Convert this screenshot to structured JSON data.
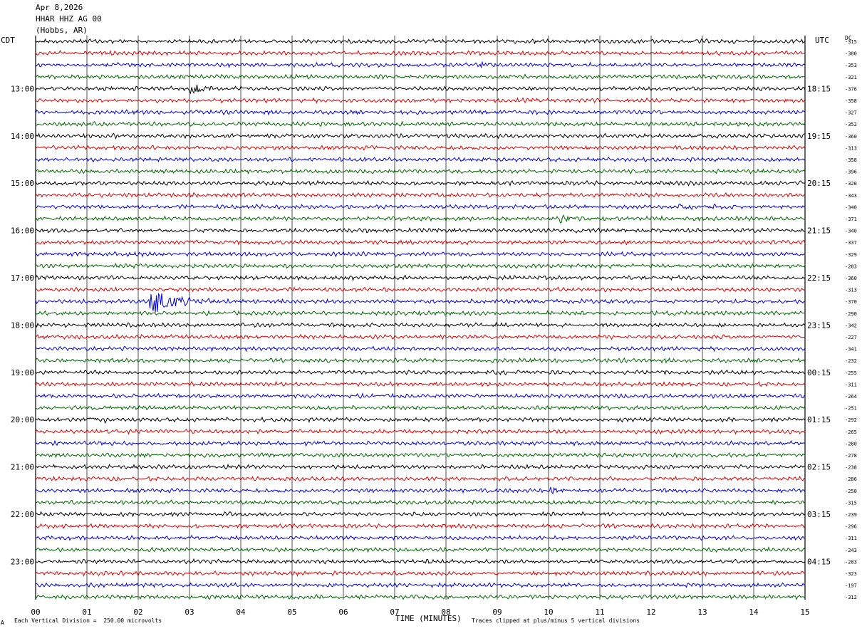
{
  "header": {
    "date": "Apr 8,2026",
    "station": "HHAR HHZ AG 00",
    "location": "(Hobbs, AR)"
  },
  "left_timezone": "CDT",
  "right_timezone": "UTC",
  "dc_label": "DC",
  "footer": {
    "scale_note": "Each Vertical Division =  250.00 microvolts",
    "xlabel": "TIME (MINUTES)",
    "clip_note": "Traces clipped at plus/minus 5 vertical divisions",
    "corner_mark": "A"
  },
  "colors": {
    "trace_cycle": [
      "#000000",
      "#dd0000",
      "#0000dd",
      "#006600"
    ],
    "grid": "#000000"
  },
  "chart_data": {
    "type": "line",
    "title": "",
    "xlabel": "TIME (MINUTES)",
    "x_ticks": [
      "00",
      "01",
      "02",
      "03",
      "04",
      "05",
      "06",
      "07",
      "08",
      "09",
      "10",
      "11",
      "12",
      "13",
      "14",
      "15"
    ],
    "xlim": [
      0,
      15
    ],
    "grid": true,
    "left_hour_labels": [
      {
        "row": 4,
        "label": "13:00"
      },
      {
        "row": 8,
        "label": "14:00"
      },
      {
        "row": 12,
        "label": "15:00"
      },
      {
        "row": 16,
        "label": "16:00"
      },
      {
        "row": 20,
        "label": "17:00"
      },
      {
        "row": 24,
        "label": "18:00"
      },
      {
        "row": 28,
        "label": "19:00"
      },
      {
        "row": 32,
        "label": "20:00"
      },
      {
        "row": 36,
        "label": "21:00"
      },
      {
        "row": 40,
        "label": "22:00"
      },
      {
        "row": 44,
        "label": "23:00"
      }
    ],
    "right_hour_labels": [
      {
        "row": 4,
        "label": "18:15"
      },
      {
        "row": 8,
        "label": "19:15"
      },
      {
        "row": 12,
        "label": "20:15"
      },
      {
        "row": 16,
        "label": "21:15"
      },
      {
        "row": 20,
        "label": "22:15"
      },
      {
        "row": 24,
        "label": "23:15"
      },
      {
        "row": 28,
        "label": "00:15"
      },
      {
        "row": 32,
        "label": "01:15"
      },
      {
        "row": 36,
        "label": "02:15"
      },
      {
        "row": 40,
        "label": "03:15"
      },
      {
        "row": 44,
        "label": "04:15"
      }
    ],
    "dc_offsets": [
      "-315",
      "-300",
      "-353",
      "-321",
      "-376",
      "-358",
      "-327",
      "-352",
      "-360",
      "-313",
      "-358",
      "-396",
      "-320",
      "-343",
      "-340",
      "-371",
      "-340",
      "-337",
      "-329",
      "-283",
      "-360",
      "-313",
      "-370",
      "-290",
      "-342",
      "-227",
      "-341",
      "-232",
      "-255",
      "-311",
      "-264",
      "-251",
      "-292",
      "-265",
      "-280",
      "-278",
      "-238",
      "-286",
      "-258",
      "-315",
      "-239",
      "-296",
      "-311",
      "-243",
      "-283",
      "-323",
      "-197",
      "-312"
    ],
    "events": [
      {
        "row": 4,
        "start_min": 2.9,
        "end_min": 4.5,
        "amplitude": 1.0
      },
      {
        "row": 22,
        "start_min": 2.2,
        "end_min": 3.8,
        "amplitude": 3.2
      },
      {
        "row": 15,
        "start_min": 10.2,
        "end_min": 11.2,
        "amplitude": 1.0
      },
      {
        "row": 14,
        "start_min": 12.5,
        "end_min": 14.2,
        "amplitude": 0.5
      },
      {
        "row": 32,
        "start_min": 1.0,
        "end_min": 2.0,
        "amplitude": 0.6
      },
      {
        "row": 32,
        "start_min": 8.6,
        "end_min": 8.9,
        "amplitude": 0.8
      },
      {
        "row": 44,
        "start_min": 7.6,
        "end_min": 7.9,
        "amplitude": 0.7
      },
      {
        "row": 2,
        "start_min": 8.6,
        "end_min": 9.9,
        "amplitude": 0.5
      },
      {
        "row": 23,
        "start_min": 7.2,
        "end_min": 8.8,
        "amplitude": 0.4
      },
      {
        "row": 38,
        "start_min": 10.0,
        "end_min": 10.9,
        "amplitude": 0.5
      },
      {
        "row": 8,
        "start_min": 1.5,
        "end_min": 2.2,
        "amplitude": 0.4
      },
      {
        "row": 19,
        "start_min": 1.9,
        "end_min": 2.6,
        "amplitude": 0.4
      }
    ]
  }
}
